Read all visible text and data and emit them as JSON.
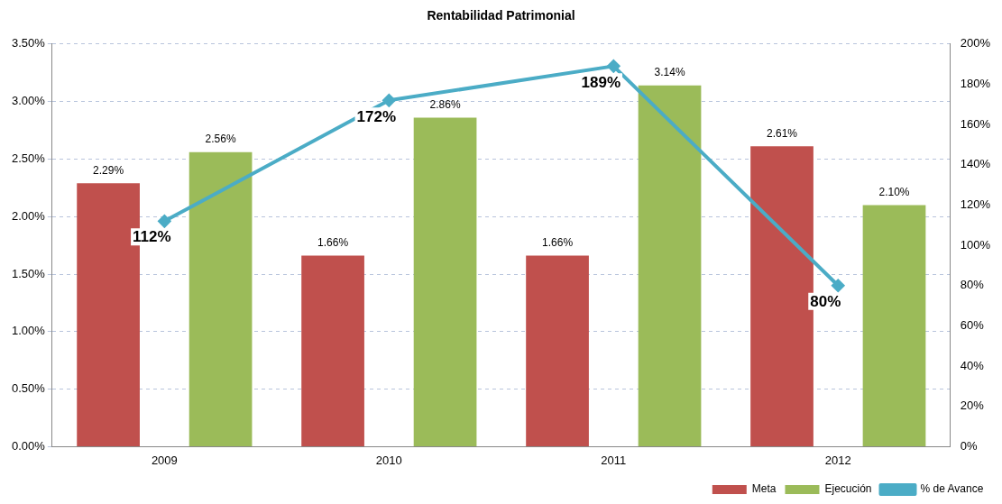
{
  "chart_data": {
    "type": "bar",
    "title": "Rentabilidad Patrimonial",
    "categories": [
      "2009",
      "2010",
      "2011",
      "2012"
    ],
    "series": [
      {
        "name": "Meta",
        "color": "#c0504d",
        "values": [
          2.29,
          1.66,
          1.66,
          2.61
        ],
        "value_labels": [
          "2.29%",
          "1.66%",
          "1.66%",
          "2.61%"
        ]
      },
      {
        "name": "Ejecución",
        "color": "#9bbb59",
        "values": [
          2.56,
          2.86,
          3.14,
          2.1
        ],
        "value_labels": [
          "2.56%",
          "2.86%",
          "3.14%",
          "2.10%"
        ]
      },
      {
        "name": "% de Avance",
        "type": "line",
        "axis": "y2",
        "color": "#4bacc6",
        "values": [
          112,
          172,
          189,
          80
        ],
        "value_labels": [
          "112%",
          "172%",
          "189%",
          "80%"
        ]
      }
    ],
    "ylim": [
      0,
      3.5
    ],
    "yticks": [
      {
        "value": 0,
        "label": "0.00%"
      },
      {
        "value": 0.5,
        "label": "0.50%"
      },
      {
        "value": 1,
        "label": "1.00%"
      },
      {
        "value": 1.5,
        "label": "1.50%"
      },
      {
        "value": 2,
        "label": "2.00%"
      },
      {
        "value": 2.5,
        "label": "2.50%"
      },
      {
        "value": 3,
        "label": "3.00%"
      },
      {
        "value": 3.5,
        "label": "3.50%"
      }
    ],
    "y2lim": [
      0,
      200
    ],
    "y2ticks": [
      {
        "value": 0,
        "label": "0%"
      },
      {
        "value": 20,
        "label": "20%"
      },
      {
        "value": 40,
        "label": "40%"
      },
      {
        "value": 60,
        "label": "60%"
      },
      {
        "value": 80,
        "label": "80%"
      },
      {
        "value": 100,
        "label": "100%"
      },
      {
        "value": 120,
        "label": "120%"
      },
      {
        "value": 140,
        "label": "140%"
      },
      {
        "value": 160,
        "label": "160%"
      },
      {
        "value": 180,
        "label": "180%"
      },
      {
        "value": 200,
        "label": "200%"
      }
    ],
    "grid": "y",
    "legend": "bottom right",
    "marker": "diamond",
    "line_style": "solid"
  }
}
